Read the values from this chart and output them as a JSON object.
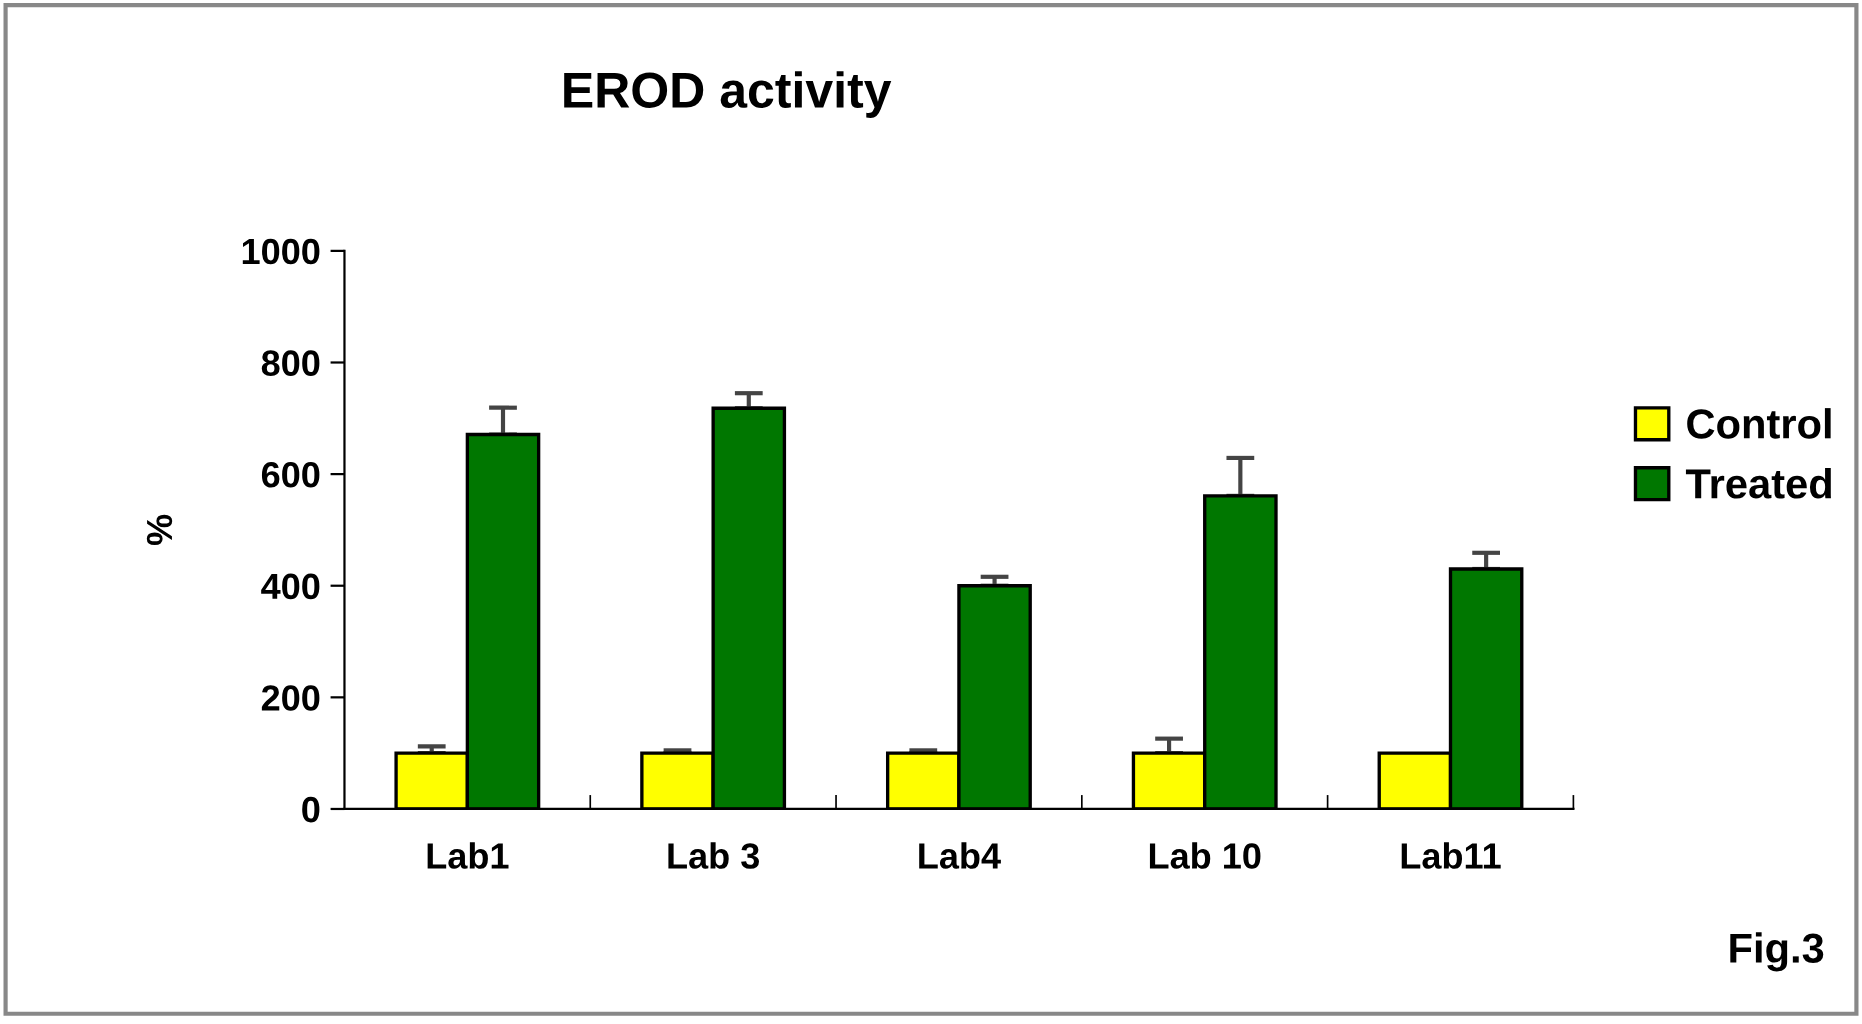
{
  "chart_data": {
    "type": "bar",
    "title": "EROD activity",
    "ylabel": "%",
    "categories": [
      "Lab1",
      "Lab 3",
      "Lab4",
      "Lab 10",
      "Lab11"
    ],
    "series": [
      {
        "name": "Control",
        "color": "#ffff00",
        "values": [
          100,
          100,
          100,
          100,
          100
        ],
        "errors": [
          12,
          5,
          5,
          26,
          null
        ]
      },
      {
        "name": "Treated",
        "color": "#007700",
        "values": [
          671,
          718,
          400,
          561,
          430
        ],
        "errors": [
          48,
          27,
          16,
          68,
          29
        ]
      }
    ],
    "ylim": [
      0,
      1000
    ],
    "yticks": [
      0,
      200,
      400,
      600,
      800,
      1000
    ],
    "grid": false,
    "legend": "right",
    "annotations": [
      "Fig.3"
    ]
  }
}
